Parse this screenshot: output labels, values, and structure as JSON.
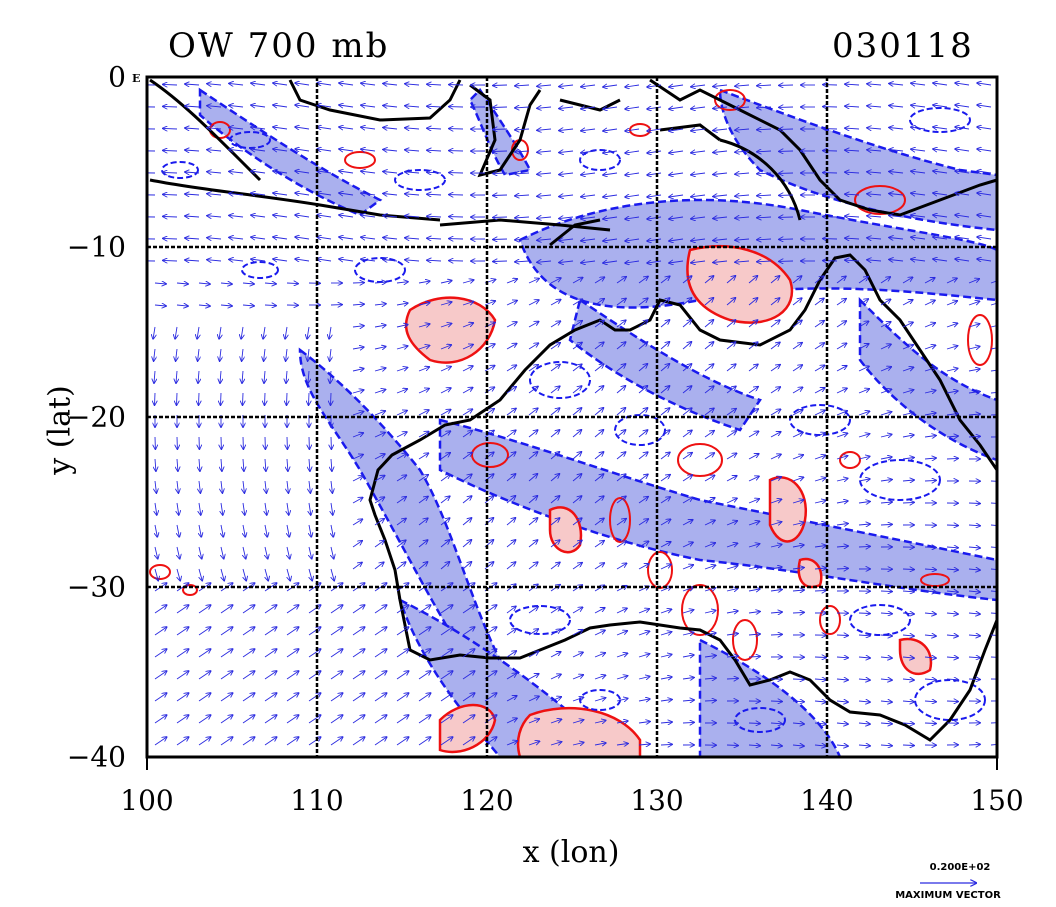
{
  "title_left": "OW 700 mb",
  "title_right": "030118",
  "x_label": "x (lon)",
  "y_label": "y (lat)",
  "x_ticks": [
    "100",
    "110",
    "120",
    "130",
    "140",
    "150"
  ],
  "y_ticks": [
    "0",
    "−10",
    "−20",
    "−30",
    "−40"
  ],
  "origin_marker": "E",
  "vector_legend": {
    "value": "0.200E+02",
    "caption": "MAXIMUM VECTOR"
  },
  "colors": {
    "positive_contour": "#ee1111",
    "positive_fill": "#f7c9c9",
    "negative_contour": "#1a1aee",
    "negative_fill": "#aab0ee",
    "vectors": "#2a2ae0",
    "coast": "#000000"
  },
  "map_extent": {
    "lon": [
      100,
      150
    ],
    "lat": [
      -40,
      0
    ]
  },
  "grid_interval_deg": 10
}
